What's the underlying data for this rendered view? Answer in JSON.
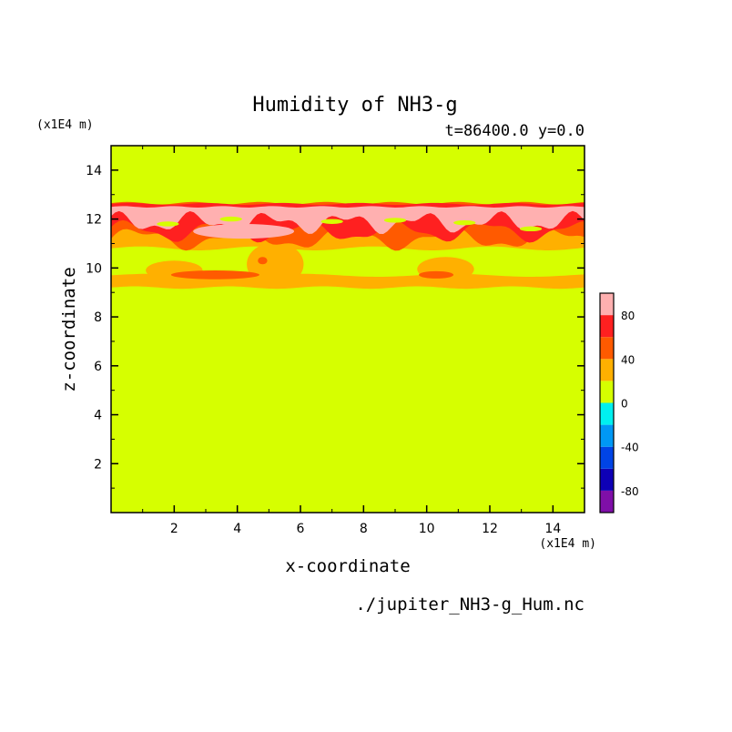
{
  "chart_data": {
    "type": "heatmap",
    "title": "Humidity of NH3-g",
    "subtitle": "t=86400.0 y=0.0",
    "xlabel": "x-coordinate",
    "ylabel": "z-coordinate",
    "x_unit": "(x1E4 m)",
    "y_unit": "(x1E4 m)",
    "source_file": "./jupiter_NH3-g_Hum.nc",
    "xlim": [
      0,
      15
    ],
    "ylim": [
      0,
      15
    ],
    "x_ticks": [
      2,
      4,
      6,
      8,
      10,
      12,
      14
    ],
    "y_ticks": [
      2,
      4,
      6,
      8,
      10,
      12,
      14
    ],
    "background_level": "0-20",
    "colorbar": {
      "range": [
        -100,
        100
      ],
      "levels": [
        {
          "from": -100,
          "to": -80,
          "color": "#7f0fa8"
        },
        {
          "from": -80,
          "to": -60,
          "color": "#0e00b6"
        },
        {
          "from": -60,
          "to": -40,
          "color": "#0044e6"
        },
        {
          "from": -40,
          "to": -20,
          "color": "#0098f5"
        },
        {
          "from": -20,
          "to": 0,
          "color": "#00f0f0"
        },
        {
          "from": 0,
          "to": 20,
          "color": "#d6ff00"
        },
        {
          "from": 20,
          "to": 40,
          "color": "#ffb000"
        },
        {
          "from": 40,
          "to": 60,
          "color": "#ff5a00"
        },
        {
          "from": 60,
          "to": 80,
          "color": "#ff2020"
        },
        {
          "from": 80,
          "to": 100,
          "color": "#ffb0b0"
        }
      ],
      "tick_labels": [
        "80",
        "40",
        "0",
        "-40",
        "-80"
      ],
      "tick_values": [
        80,
        40,
        0,
        -40,
        -80
      ]
    },
    "bands": [
      {
        "level": "20-40",
        "z_range": [
          9.2,
          9.7
        ],
        "note": "lower moist layer"
      },
      {
        "level": "40-60",
        "z_range": [
          9.6,
          10.0
        ],
        "note": "patches near x=2-6 and x=10-11"
      },
      {
        "level": "20-40",
        "z_range": [
          10.8,
          12.4
        ],
        "note": "upper moist layer"
      },
      {
        "level": "40-60",
        "z_range": [
          11.0,
          12.6
        ],
        "note": "convective cells"
      },
      {
        "level": "60-80",
        "z_range": [
          11.8,
          12.7
        ]
      },
      {
        "level": "80-100",
        "z_range": [
          11.2,
          12.6
        ],
        "note": "saturated cloud layer"
      }
    ]
  }
}
